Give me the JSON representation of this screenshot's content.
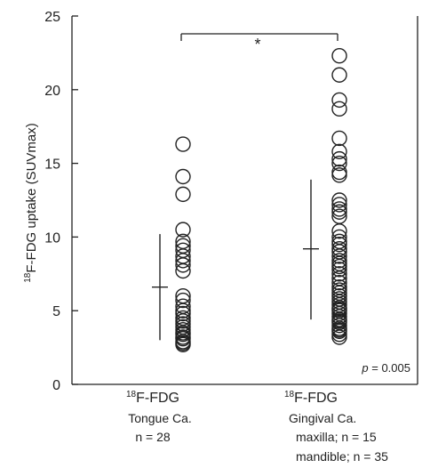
{
  "chart_data": {
    "type": "scatter",
    "ylabel": "18F-FDG uptake (SUVmax)",
    "ylabel_sup": "18",
    "ylabel_rest": "F-FDG uptake (SUVmax)",
    "ylim": [
      0,
      25
    ],
    "yticks": [
      0,
      5,
      10,
      15,
      20,
      25
    ],
    "groups": [
      {
        "sup": "18",
        "title": "F-FDG",
        "lines": [
          "Tongue Ca.",
          "n = 28"
        ],
        "mean": 6.6,
        "sd_low": 3.0,
        "sd_high": 10.2,
        "values": [
          16.3,
          14.1,
          12.9,
          10.5,
          9.7,
          9.4,
          9.1,
          8.7,
          8.4,
          8.1,
          7.7,
          6.0,
          5.7,
          5.3,
          5.0,
          4.8,
          4.5,
          4.3,
          4.1,
          3.9,
          3.7,
          3.5,
          3.4,
          3.2,
          3.1,
          2.9,
          2.8,
          2.7
        ]
      },
      {
        "sup": "18",
        "title": "F-FDG",
        "lines": [
          "Gingival Ca.",
          "maxilla; n = 15",
          "mandible; n = 35"
        ],
        "mean": 9.2,
        "sd_low": 4.4,
        "sd_high": 13.9,
        "values": [
          22.3,
          21.0,
          19.3,
          18.7,
          16.7,
          15.8,
          15.3,
          15.0,
          14.4,
          14.2,
          12.5,
          12.2,
          11.9,
          11.7,
          11.4,
          10.4,
          10.0,
          9.7,
          9.5,
          9.2,
          9.0,
          8.7,
          8.4,
          8.2,
          8.0,
          7.8,
          7.5,
          7.2,
          6.9,
          6.6,
          6.4,
          6.2,
          6.0,
          5.8,
          5.6,
          5.4,
          5.2,
          5.0,
          4.8,
          4.6,
          4.4,
          4.2,
          4.0,
          3.8,
          3.6,
          3.4,
          3.2,
          3.7,
          4.3,
          5.1
        ]
      }
    ],
    "significance": {
      "label": "*",
      "between": [
        0,
        1
      ]
    },
    "annotation": {
      "italic": "p",
      "rest": " = 0.005"
    }
  }
}
